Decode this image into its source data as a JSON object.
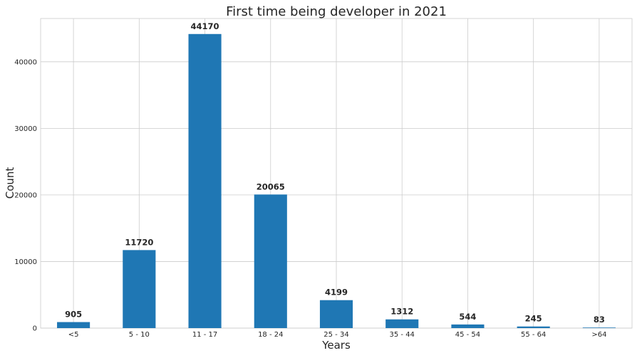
{
  "chart_data": {
    "type": "bar",
    "title": "First time being developer in 2021",
    "xlabel": "Years",
    "ylabel": "Count",
    "categories": [
      "<5",
      "5 - 10",
      "11 - 17",
      "18 - 24",
      "25 - 34",
      "35 - 44",
      "45 - 54",
      "55 - 64",
      ">64"
    ],
    "values": [
      905,
      11720,
      44170,
      20065,
      4199,
      1312,
      544,
      245,
      83
    ],
    "data_labels": [
      "905",
      "11720",
      "44170",
      "20065",
      "4199",
      "1312",
      "544",
      "245",
      "83"
    ],
    "ylim": [
      0,
      46500
    ],
    "yticks": [
      0,
      10000,
      20000,
      30000,
      40000
    ],
    "ytick_labels": [
      "0",
      "10000",
      "20000",
      "30000",
      "40000"
    ],
    "grid": true,
    "bar_color": "#1f77b4"
  }
}
